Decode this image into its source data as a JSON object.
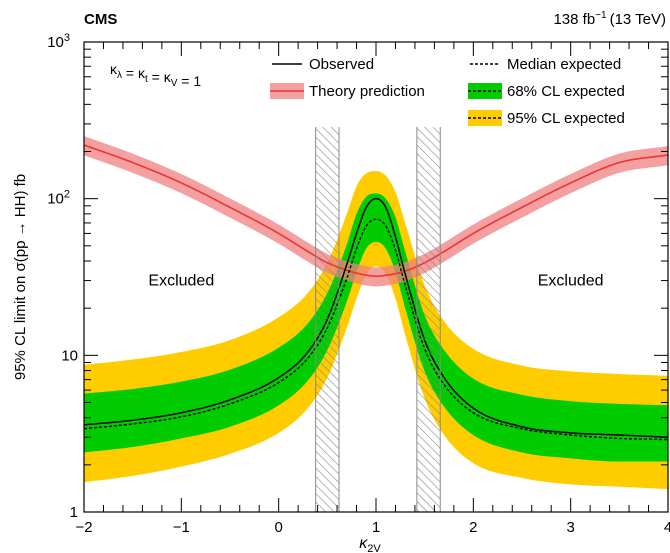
{
  "chart_data": {
    "type": "line",
    "header_left": "CMS",
    "header_right": {
      "lumi": "138 fb",
      "lumi_exp": "−1",
      "energy": "(13 TeV)"
    },
    "xlabel": {
      "main": "κ",
      "sub": "2V"
    },
    "ylabel": "95% CL limit on σ(pp → HH) fb",
    "xlim": [
      -2,
      4
    ],
    "ylim": [
      1,
      1000
    ],
    "yscale": "log",
    "x_ticks": [
      {
        "value": -2,
        "label": "−2"
      },
      {
        "value": -1,
        "label": "−1"
      },
      {
        "value": 0,
        "label": "0"
      },
      {
        "value": 1,
        "label": "1"
      },
      {
        "value": 2,
        "label": "2"
      },
      {
        "value": 3,
        "label": "3"
      },
      {
        "value": 4,
        "label": "4"
      }
    ],
    "y_ticks": [
      {
        "value": 1,
        "label": "1"
      },
      {
        "value": 10,
        "label": "10"
      },
      {
        "value": 100,
        "label": "10",
        "exp": "2"
      },
      {
        "value": 1000,
        "label": "10",
        "exp": "3"
      }
    ],
    "annotation": "κλ = κt = κV = 1",
    "annotation_parts": [
      {
        "t": "κ",
        "s": "λ"
      },
      {
        "t": " = κ",
        "s": "t"
      },
      {
        "t": " = κ",
        "s": "V"
      },
      {
        "t": " = 1",
        "s": ""
      }
    ],
    "excluded_label": "Excluded",
    "excluded_regions": [
      {
        "text_x": -1.0,
        "text_y": 30
      },
      {
        "text_x": 3.0,
        "text_y": 30
      }
    ],
    "excluded_boundaries": [
      [
        0.38,
        0.62
      ],
      [
        1.42,
        1.66
      ]
    ],
    "legend": {
      "placement": "top",
      "entries": [
        {
          "key": "observed",
          "label": "Observed"
        },
        {
          "key": "median",
          "label": "Median expected"
        },
        {
          "key": "theory",
          "label": "Theory prediction"
        },
        {
          "key": "band68",
          "label": "68% CL expected"
        },
        {
          "key": "band95",
          "label": "95% CL expected"
        }
      ]
    },
    "colors": {
      "band68": "#00cc00",
      "band95": "#ffcc00",
      "theory_line": "#ee3333",
      "theory_band": "#f08080",
      "hatch": "#888888"
    },
    "x": [
      -2.0,
      -1.5,
      -1.0,
      -0.5,
      0.0,
      0.3,
      0.5,
      0.7,
      0.8,
      0.9,
      1.0,
      1.1,
      1.2,
      1.3,
      1.5,
      1.7,
      2.0,
      2.5,
      3.0,
      3.5,
      4.0
    ],
    "series": [
      {
        "name": "Observed",
        "values": [
          3.6,
          3.85,
          4.3,
          5.2,
          7.2,
          10.5,
          17,
          38,
          60,
          88,
          100,
          88,
          57,
          33,
          12.5,
          7.2,
          4.6,
          3.5,
          3.2,
          3.1,
          3.0
        ]
      },
      {
        "name": "Median expected",
        "values": [
          3.4,
          3.65,
          4.05,
          4.9,
          6.7,
          9.6,
          15,
          31,
          48,
          67,
          74,
          67,
          47,
          28,
          11,
          6.5,
          4.3,
          3.4,
          3.1,
          2.95,
          2.9
        ]
      },
      {
        "name": "68% CL expected",
        "lower": [
          2.4,
          2.6,
          2.95,
          3.5,
          4.8,
          6.9,
          10.8,
          22,
          34,
          48,
          53,
          48,
          34,
          20,
          7.9,
          4.7,
          3.1,
          2.4,
          2.2,
          2.1,
          2.1
        ],
        "upper": [
          5.7,
          6.1,
          6.8,
          8.1,
          11.2,
          16,
          25,
          51,
          80,
          103,
          108,
          100,
          76,
          46,
          18,
          10.8,
          7.1,
          5.6,
          5.1,
          4.9,
          4.8
        ]
      },
      {
        "name": "95% CL expected",
        "lower": [
          1.55,
          1.7,
          1.95,
          2.35,
          3.2,
          4.6,
          7.2,
          15,
          23,
          33,
          37,
          33,
          23,
          13.5,
          5.3,
          3.1,
          2.05,
          1.65,
          1.5,
          1.45,
          1.4
        ],
        "upper": [
          8.7,
          9.4,
          10.5,
          12.5,
          17.5,
          25,
          39,
          80,
          120,
          145,
          150,
          140,
          110,
          70,
          28,
          16.5,
          11,
          8.6,
          7.9,
          7.6,
          7.4
        ]
      },
      {
        "name": "Theory prediction",
        "values": [
          220,
          170,
          126,
          88,
          60,
          46,
          39,
          35,
          33.5,
          32.5,
          32,
          32.4,
          33.2,
          34.5,
          39,
          46,
          60,
          88,
          126,
          170,
          190
        ]
      }
    ]
  }
}
